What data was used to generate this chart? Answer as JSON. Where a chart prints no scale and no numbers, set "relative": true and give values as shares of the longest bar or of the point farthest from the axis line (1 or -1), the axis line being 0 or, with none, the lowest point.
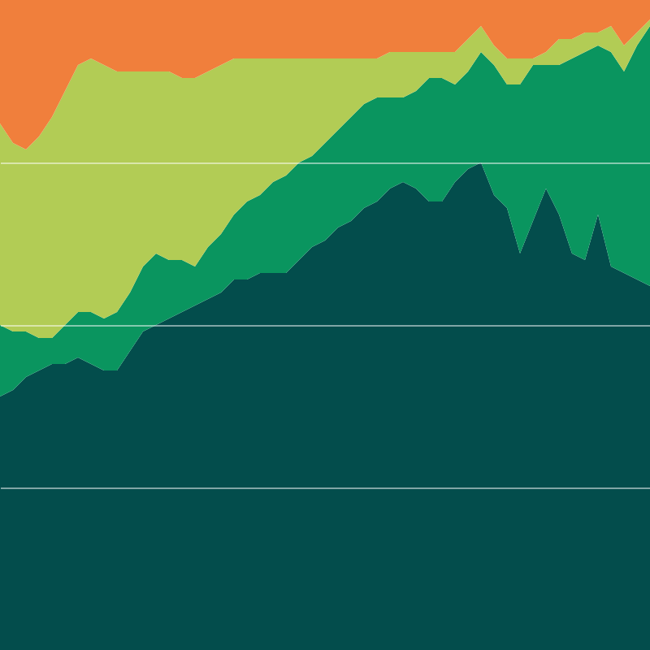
{
  "chart_data": {
    "type": "area",
    "stacked": true,
    "relative": true,
    "grid": "y",
    "categories": [
      null,
      null,
      null,
      null,
      null,
      null,
      null,
      null,
      null,
      null,
      null,
      null,
      null,
      null,
      null,
      null,
      null,
      null,
      null,
      null,
      null,
      null,
      null,
      null,
      null,
      null,
      null,
      null,
      null,
      null,
      null,
      null,
      null,
      null,
      null,
      null,
      null,
      null,
      null,
      null,
      null,
      null,
      null,
      null,
      null,
      null,
      null,
      null,
      null,
      null,
      null
    ],
    "series": [
      {
        "color": "#034d4c",
        "values": [
          0.39,
          0.4,
          0.42,
          0.43,
          0.44,
          0.44,
          0.45,
          0.44,
          0.43,
          0.43,
          0.46,
          0.49,
          0.5,
          0.51,
          0.52,
          0.53,
          0.54,
          0.55,
          0.57,
          0.57,
          0.58,
          0.58,
          0.58,
          0.6,
          0.62,
          0.63,
          0.65,
          0.66,
          0.68,
          0.69,
          0.71,
          0.72,
          0.71,
          0.69,
          0.69,
          0.72,
          0.74,
          0.75,
          0.7,
          0.68,
          0.61,
          0.66,
          0.71,
          0.67,
          0.61,
          0.6,
          0.67,
          0.59,
          0.58,
          0.57,
          0.56
        ]
      },
      {
        "color": "#0a955f",
        "values": [
          0.11,
          0.09,
          0.07,
          0.05,
          0.04,
          0.06,
          0.07,
          0.08,
          0.08,
          0.09,
          0.09,
          0.1,
          0.11,
          0.09,
          0.08,
          0.06,
          0.08,
          0.09,
          0.1,
          0.12,
          0.12,
          0.14,
          0.15,
          0.15,
          0.14,
          0.15,
          0.15,
          0.16,
          0.16,
          0.16,
          0.14,
          0.13,
          0.15,
          0.19,
          0.19,
          0.15,
          0.15,
          0.17,
          0.2,
          0.19,
          0.26,
          0.24,
          0.19,
          0.23,
          0.3,
          0.32,
          0.26,
          0.33,
          0.31,
          0.36,
          0.4
        ]
      },
      {
        "color": "#b2cc55",
        "values": [
          0.31,
          0.29,
          0.28,
          0.31,
          0.34,
          0.36,
          0.38,
          0.39,
          0.39,
          0.37,
          0.34,
          0.3,
          0.28,
          0.29,
          0.28,
          0.29,
          0.27,
          0.26,
          0.24,
          0.22,
          0.21,
          0.19,
          0.18,
          0.16,
          0.15,
          0.13,
          0.11,
          0.09,
          0.07,
          0.06,
          0.07,
          0.07,
          0.06,
          0.04,
          0.04,
          0.05,
          0.05,
          0.04,
          0.03,
          0.04,
          0.04,
          0.01,
          0.02,
          0.04,
          0.03,
          0.03,
          0.02,
          0.04,
          0.04,
          0.02,
          0.01
        ]
      },
      {
        "color": "#f07f3c",
        "values": [
          0.19,
          0.22,
          0.23,
          0.21,
          0.18,
          0.14,
          0.1,
          0.09,
          0.1,
          0.11,
          0.11,
          0.11,
          0.11,
          0.11,
          0.12,
          0.12,
          0.11,
          0.1,
          0.09,
          0.09,
          0.09,
          0.09,
          0.09,
          0.09,
          0.09,
          0.09,
          0.09,
          0.09,
          0.09,
          0.09,
          0.08,
          0.08,
          0.08,
          0.08,
          0.08,
          0.08,
          0.06,
          0.04,
          0.07,
          0.09,
          0.09,
          0.09,
          0.08,
          0.06,
          0.06,
          0.05,
          0.05,
          0.04,
          0.07,
          0.05,
          0.03
        ]
      }
    ]
  }
}
